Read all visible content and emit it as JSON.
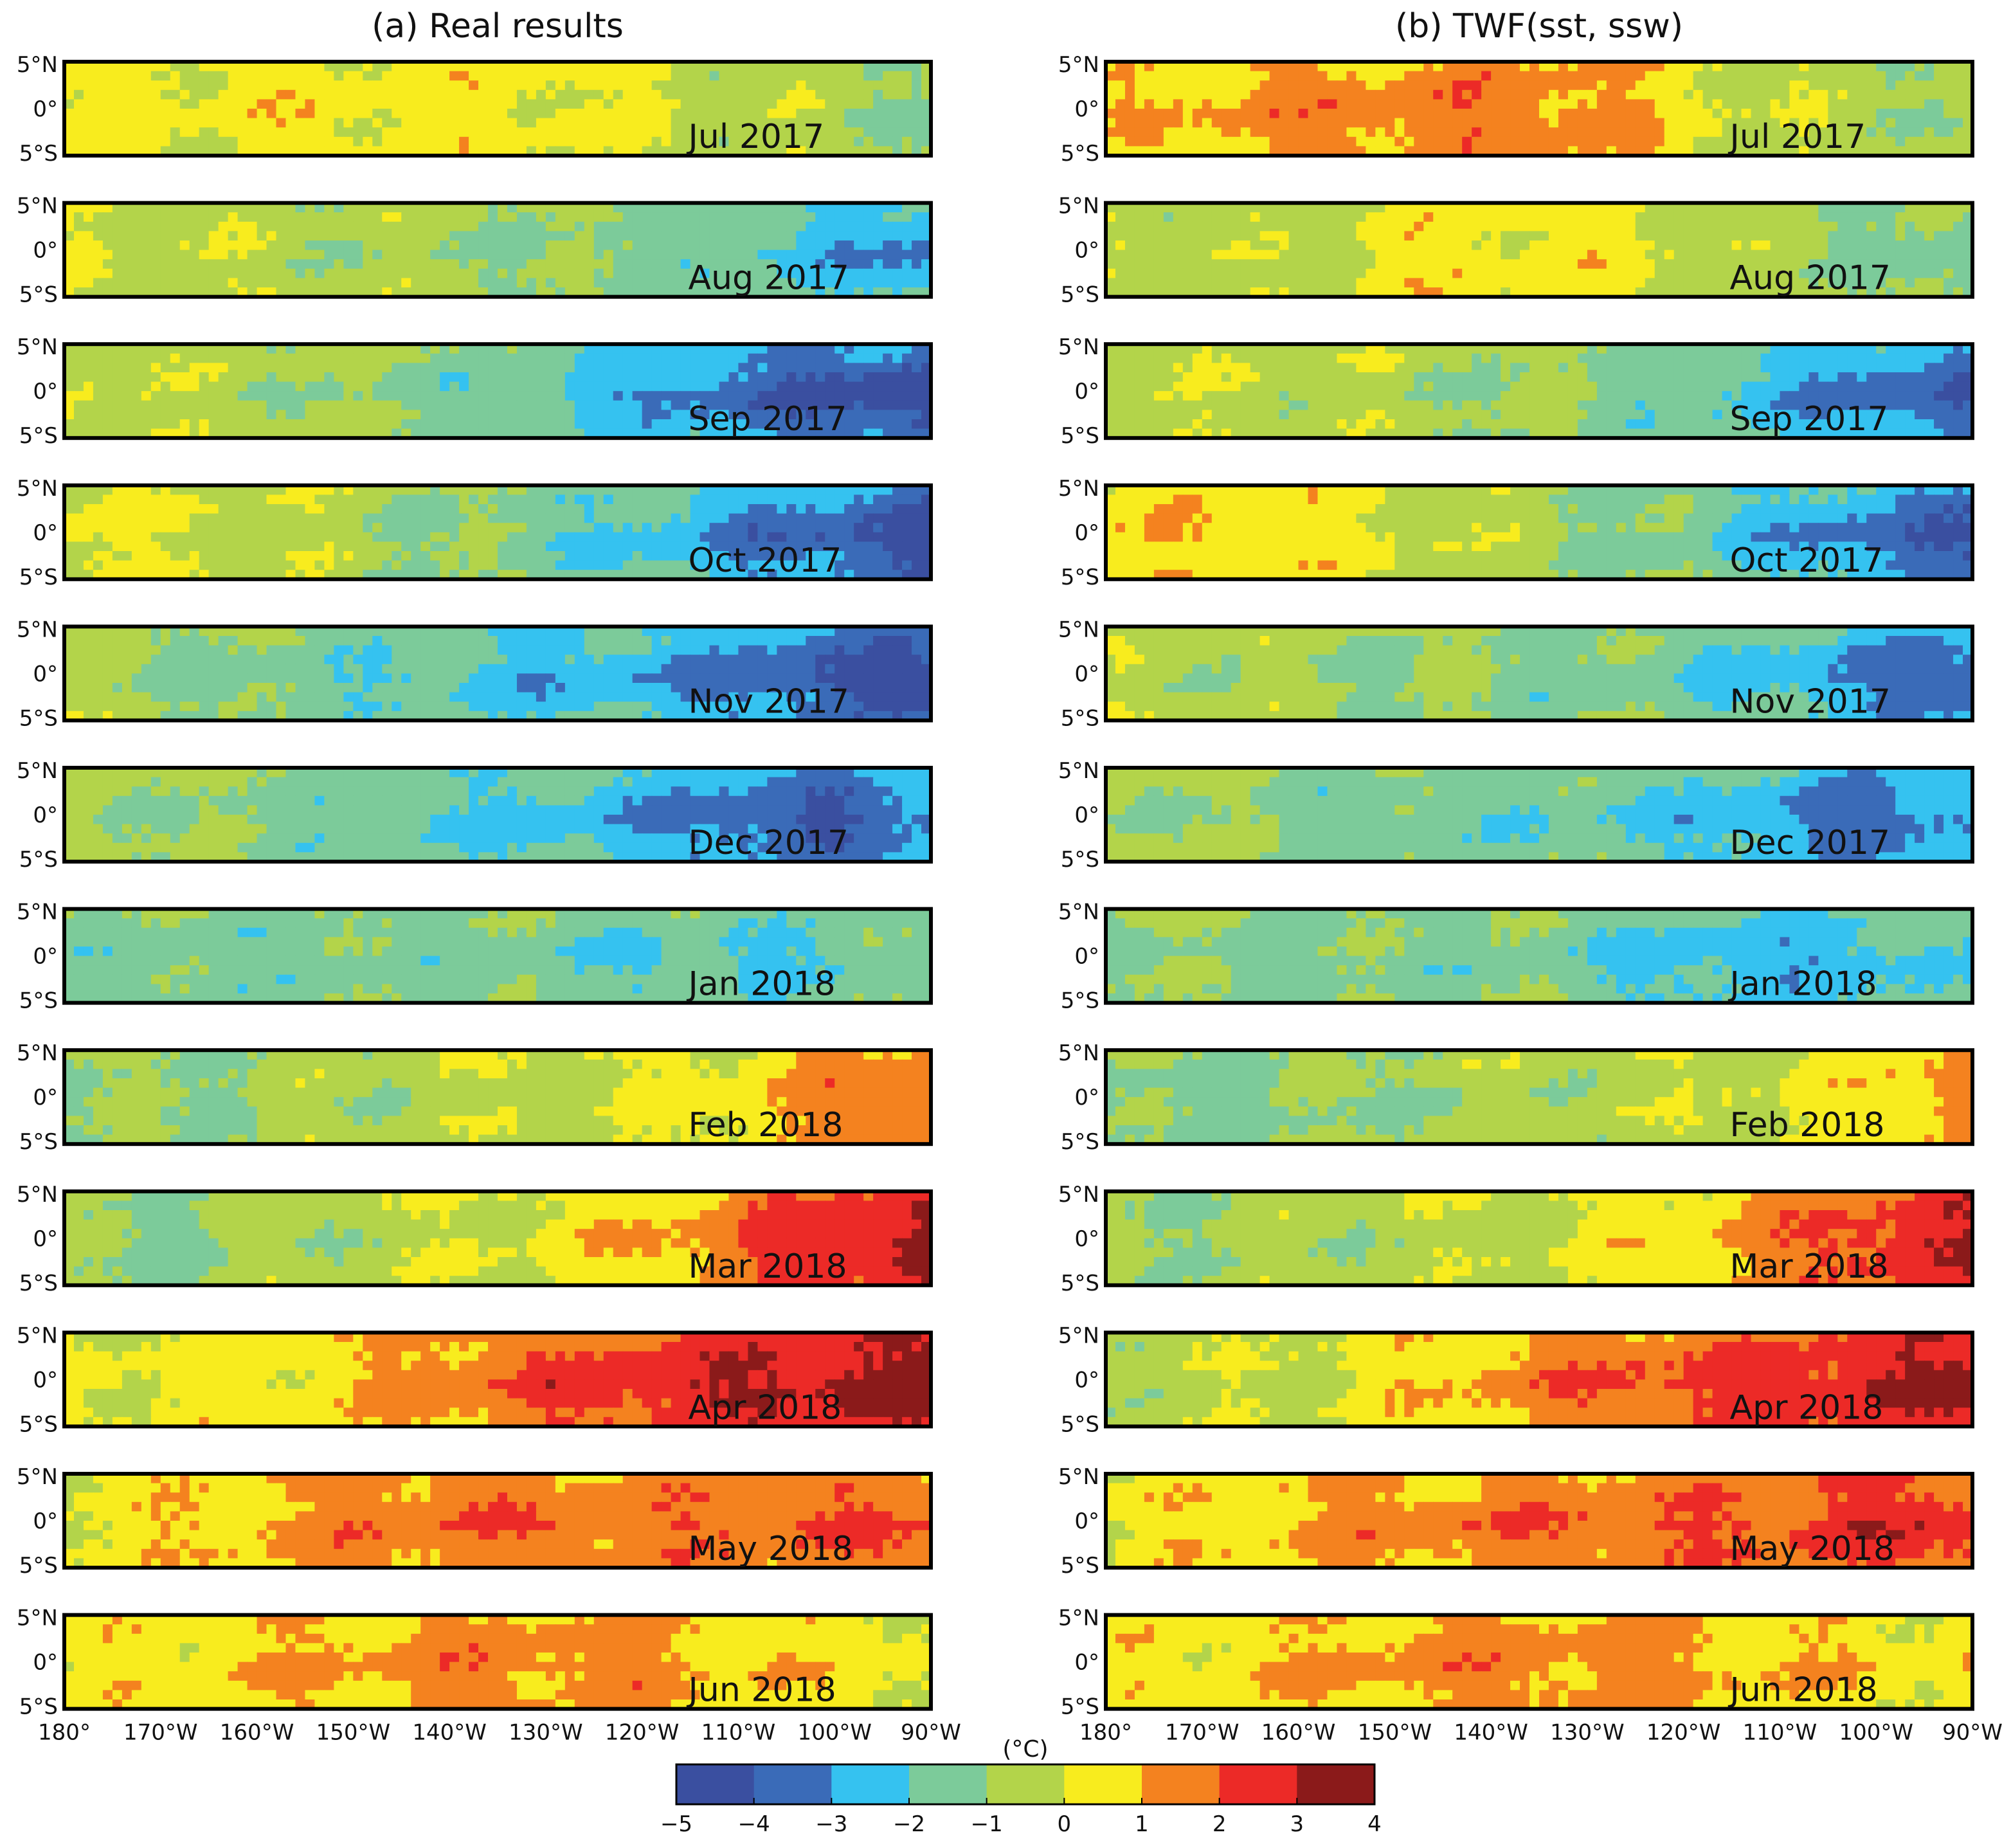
{
  "chart_data": {
    "type": "heatmap",
    "titles": [
      "(a) Real results",
      "(b) TWF(sst, ssw)"
    ],
    "lat_ticks": [
      "5°N",
      "0°",
      "5°S"
    ],
    "lon_ticks": [
      "180°",
      "170°W",
      "160°W",
      "150°W",
      "140°W",
      "130°W",
      "120°W",
      "110°W",
      "100°W",
      "90°W"
    ],
    "months": [
      "Jul 2017",
      "Aug 2017",
      "Sep 2017",
      "Oct 2017",
      "Nov 2017",
      "Dec 2017",
      "Jan 2018",
      "Feb 2018",
      "Mar 2018",
      "Apr 2018",
      "May 2018",
      "Jun 2018"
    ],
    "lon_range": [
      -180,
      -90
    ],
    "lat_range": [
      -5,
      5
    ],
    "colorbar": {
      "unit": "(°C)",
      "ticks": [
        "−5",
        "−4",
        "−3",
        "−2",
        "−1",
        "0",
        "1",
        "2",
        "3",
        "4"
      ],
      "levels": [
        -5,
        -4,
        -3,
        -2,
        -1,
        0,
        1,
        2,
        3,
        4
      ],
      "colors": [
        "#3a4fa0",
        "#3a6bb8",
        "#35c2f0",
        "#7ccb9a",
        "#b3d44a",
        "#f8ec1e",
        "#f4821f",
        "#ec2a27",
        "#8b1a1a"
      ]
    },
    "anomaly_profiles": {
      "real": [
        [
          0.2,
          0.3,
          0.4,
          0.5,
          0.4,
          0.3,
          0.0,
          -0.3,
          -0.6,
          -1.0
        ],
        [
          0.0,
          -0.2,
          -0.4,
          -0.6,
          -0.8,
          -1.0,
          -1.2,
          -1.6,
          -2.2,
          -2.8
        ],
        [
          0.0,
          -0.3,
          -0.6,
          -0.9,
          -1.3,
          -1.8,
          -2.4,
          -3.2,
          -3.7,
          -4.2
        ],
        [
          0.2,
          0.0,
          -0.3,
          -0.6,
          -1.0,
          -1.4,
          -2.0,
          -2.8,
          -3.4,
          -3.9
        ],
        [
          -0.6,
          -1.0,
          -1.3,
          -1.6,
          -1.9,
          -2.2,
          -2.4,
          -3.0,
          -3.6,
          -4.0
        ],
        [
          -0.6,
          -0.9,
          -1.2,
          -1.5,
          -1.8,
          -2.1,
          -2.5,
          -3.2,
          -3.6,
          -2.8
        ],
        [
          -1.2,
          -1.4,
          -1.4,
          -1.3,
          -1.2,
          -1.5,
          -1.8,
          -1.9,
          -1.7,
          -1.4
        ],
        [
          -1.0,
          -1.0,
          -0.8,
          -0.6,
          -0.4,
          -0.2,
          0.0,
          0.5,
          1.3,
          1.8
        ],
        [
          -1.0,
          -1.0,
          -0.8,
          -0.5,
          -0.2,
          0.2,
          0.8,
          1.6,
          2.4,
          2.9
        ],
        [
          0.3,
          0.2,
          0.4,
          0.8,
          1.4,
          1.9,
          2.3,
          2.6,
          2.9,
          3.2
        ],
        [
          0.2,
          0.6,
          1.0,
          1.4,
          1.6,
          1.5,
          1.5,
          1.6,
          1.7,
          1.8
        ],
        [
          0.3,
          0.5,
          0.8,
          1.1,
          1.3,
          1.3,
          1.2,
          0.8,
          0.5,
          0.3
        ]
      ],
      "twf": [
        [
          0.6,
          1.0,
          1.3,
          1.4,
          1.4,
          1.4,
          0.4,
          -0.2,
          -0.6,
          -0.8
        ],
        [
          -0.2,
          -0.4,
          -0.4,
          0.4,
          0.5,
          0.4,
          -0.2,
          -0.6,
          -1.0,
          -1.6
        ],
        [
          -0.2,
          -0.3,
          -0.4,
          -0.6,
          -0.8,
          -1.1,
          -1.5,
          -2.3,
          -3.0,
          -3.6
        ],
        [
          0.4,
          0.8,
          0.5,
          0.0,
          -0.4,
          -0.9,
          -1.4,
          -2.2,
          -3.0,
          -3.6
        ],
        [
          -0.4,
          -0.6,
          -0.8,
          -0.9,
          -1.1,
          -1.3,
          -1.6,
          -2.2,
          -2.8,
          -3.3
        ],
        [
          -0.6,
          -0.9,
          -1.2,
          -1.4,
          -1.5,
          -1.7,
          -2.0,
          -2.6,
          -3.2,
          -2.6
        ],
        [
          -1.0,
          -1.1,
          -1.2,
          -1.2,
          -1.2,
          -1.6,
          -2.1,
          -2.4,
          -2.2,
          -1.6
        ],
        [
          -1.2,
          -1.2,
          -1.0,
          -0.9,
          -0.7,
          -0.5,
          -0.3,
          0.0,
          0.6,
          1.4
        ],
        [
          -0.8,
          -0.8,
          -0.7,
          -0.5,
          -0.3,
          0.1,
          0.6,
          1.4,
          2.2,
          2.6
        ],
        [
          -0.4,
          -0.3,
          -0.1,
          0.4,
          1.1,
          1.6,
          1.9,
          2.2,
          2.6,
          3.0
        ],
        [
          0.3,
          0.6,
          1.0,
          1.3,
          1.5,
          1.6,
          1.7,
          1.9,
          2.2,
          2.4
        ],
        [
          0.3,
          0.5,
          0.9,
          1.2,
          1.3,
          1.3,
          1.1,
          0.8,
          0.6,
          0.4
        ]
      ]
    }
  }
}
